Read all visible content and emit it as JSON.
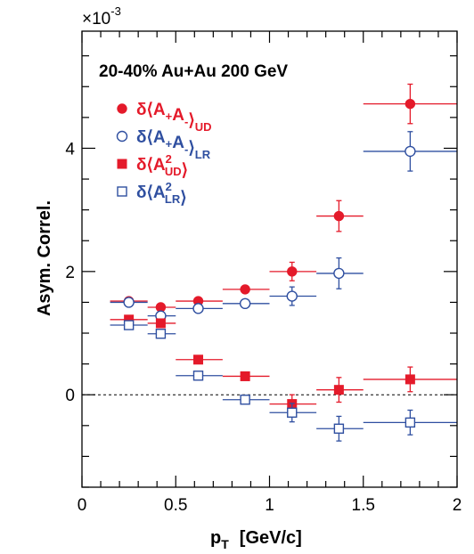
{
  "chart_data": {
    "type": "scatter",
    "title": "20-40% Au+Au 200 GeV",
    "xlabel": "p",
    "xlabel_sub": "T",
    "xlabel_unit": "[GeV/c]",
    "ylabel": "Asym. Correl.",
    "y_multiplier": "×10",
    "y_multiplier_exp": "-3",
    "xlim": [
      0,
      2
    ],
    "ylim": [
      -1.5,
      5.9
    ],
    "x_ticks": [
      0,
      0.5,
      1,
      1.5,
      2
    ],
    "x_tick_labels": [
      "0",
      "0.5",
      "1",
      "1.5",
      "2"
    ],
    "y_ticks": [
      0,
      2,
      4
    ],
    "y_tick_labels": [
      "0",
      "2",
      "4"
    ],
    "x_minor_step": 0.1,
    "y_minor_step": 0.5,
    "reference_line": {
      "y": 0,
      "style": "dashed"
    },
    "colors": {
      "red": "#e41a2a",
      "blue": "#2f4fa0"
    },
    "series": [
      {
        "legend_main": "δ⟨A",
        "legend_parts": [
          {
            "t": "δ⟨A",
            "s": "n"
          },
          {
            "t": "+",
            "s": "sub"
          },
          {
            "t": "A",
            "s": "n"
          },
          {
            "t": "-",
            "s": "sub"
          },
          {
            "t": "⟩",
            "s": "n"
          },
          {
            "t": "UD",
            "s": "sub"
          }
        ],
        "marker": "circle-filled",
        "color": "#e41a2a",
        "points": [
          {
            "x": 0.25,
            "xlo": 0.15,
            "xhi": 0.35,
            "y": 1.52,
            "yerr": 0.03
          },
          {
            "x": 0.42,
            "xlo": 0.35,
            "xhi": 0.5,
            "y": 1.42,
            "yerr": 0.04
          },
          {
            "x": 0.62,
            "xlo": 0.5,
            "xhi": 0.75,
            "y": 1.52,
            "yerr": 0.04
          },
          {
            "x": 0.87,
            "xlo": 0.75,
            "xhi": 1.0,
            "y": 1.71,
            "yerr": 0.06
          },
          {
            "x": 1.12,
            "xlo": 1.0,
            "xhi": 1.25,
            "y": 2.0,
            "yerr": 0.15
          },
          {
            "x": 1.37,
            "xlo": 1.25,
            "xhi": 1.5,
            "y": 2.9,
            "yerr": 0.25
          },
          {
            "x": 1.75,
            "xlo": 1.5,
            "xhi": 2.0,
            "y": 4.72,
            "yerr": 0.32
          }
        ]
      },
      {
        "legend_parts": [
          {
            "t": "δ⟨A",
            "s": "n"
          },
          {
            "t": "+",
            "s": "sub"
          },
          {
            "t": "A",
            "s": "n"
          },
          {
            "t": "-",
            "s": "sub"
          },
          {
            "t": "⟩",
            "s": "n"
          },
          {
            "t": "LR",
            "s": "sub"
          }
        ],
        "marker": "circle-open",
        "color": "#2f4fa0",
        "points": [
          {
            "x": 0.25,
            "xlo": 0.15,
            "xhi": 0.35,
            "y": 1.5,
            "yerr": 0.03
          },
          {
            "x": 0.42,
            "xlo": 0.35,
            "xhi": 0.5,
            "y": 1.28,
            "yerr": 0.05
          },
          {
            "x": 0.62,
            "xlo": 0.5,
            "xhi": 0.75,
            "y": 1.4,
            "yerr": 0.05
          },
          {
            "x": 0.87,
            "xlo": 0.75,
            "xhi": 1.0,
            "y": 1.48,
            "yerr": 0.06
          },
          {
            "x": 1.12,
            "xlo": 1.0,
            "xhi": 1.25,
            "y": 1.6,
            "yerr": 0.15
          },
          {
            "x": 1.37,
            "xlo": 1.25,
            "xhi": 1.5,
            "y": 1.97,
            "yerr": 0.25
          },
          {
            "x": 1.75,
            "xlo": 1.5,
            "xhi": 2.0,
            "y": 3.95,
            "yerr": 0.32
          }
        ]
      },
      {
        "legend_parts": [
          {
            "t": "δ⟨A",
            "s": "n"
          },
          {
            "t": "UD",
            "s": "subsup",
            "sup": "2"
          },
          {
            "t": "⟩",
            "s": "n"
          }
        ],
        "marker": "square-filled",
        "color": "#e41a2a",
        "points": [
          {
            "x": 0.25,
            "xlo": 0.15,
            "xhi": 0.35,
            "y": 1.22,
            "yerr": 0.03
          },
          {
            "x": 0.42,
            "xlo": 0.35,
            "xhi": 0.5,
            "y": 1.16,
            "yerr": 0.05
          },
          {
            "x": 0.62,
            "xlo": 0.5,
            "xhi": 0.75,
            "y": 0.57,
            "yerr": 0.05
          },
          {
            "x": 0.87,
            "xlo": 0.75,
            "xhi": 1.0,
            "y": 0.3,
            "yerr": 0.06
          },
          {
            "x": 1.12,
            "xlo": 1.0,
            "xhi": 1.25,
            "y": -0.15,
            "yerr": 0.15
          },
          {
            "x": 1.37,
            "xlo": 1.25,
            "xhi": 1.5,
            "y": 0.08,
            "yerr": 0.2
          },
          {
            "x": 1.75,
            "xlo": 1.5,
            "xhi": 2.0,
            "y": 0.25,
            "yerr": 0.2
          }
        ]
      },
      {
        "legend_parts": [
          {
            "t": "δ⟨A",
            "s": "n"
          },
          {
            "t": "LR",
            "s": "subsup",
            "sup": "2"
          },
          {
            "t": "⟩",
            "s": "n"
          }
        ],
        "marker": "square-open",
        "color": "#2f4fa0",
        "points": [
          {
            "x": 0.25,
            "xlo": 0.15,
            "xhi": 0.35,
            "y": 1.13,
            "yerr": 0.03
          },
          {
            "x": 0.42,
            "xlo": 0.35,
            "xhi": 0.5,
            "y": 0.99,
            "yerr": 0.05
          },
          {
            "x": 0.62,
            "xlo": 0.5,
            "xhi": 0.75,
            "y": 0.31,
            "yerr": 0.05
          },
          {
            "x": 0.87,
            "xlo": 0.75,
            "xhi": 1.0,
            "y": -0.08,
            "yerr": 0.06
          },
          {
            "x": 1.12,
            "xlo": 1.0,
            "xhi": 1.25,
            "y": -0.29,
            "yerr": 0.15
          },
          {
            "x": 1.37,
            "xlo": 1.25,
            "xhi": 1.5,
            "y": -0.55,
            "yerr": 0.2
          },
          {
            "x": 1.75,
            "xlo": 1.5,
            "xhi": 2.0,
            "y": -0.45,
            "yerr": 0.2
          }
        ]
      }
    ]
  }
}
